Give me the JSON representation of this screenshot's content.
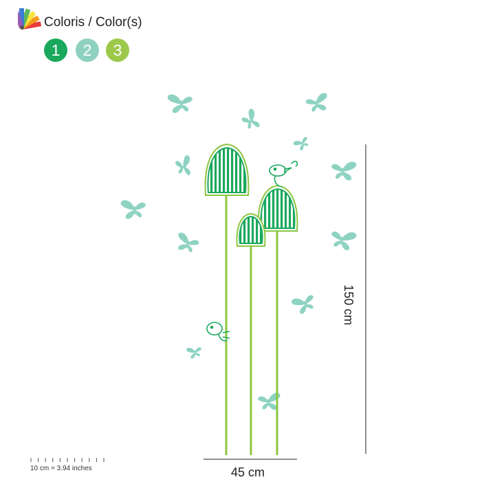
{
  "header": {
    "palette_icon": "color-palette-icon",
    "title": "Coloris / Color(s)"
  },
  "swatches": [
    {
      "label": "1",
      "color": "#1aa85c"
    },
    {
      "label": "2",
      "color": "#8fd1c0"
    },
    {
      "label": "3",
      "color": "#9cc94a"
    }
  ],
  "dimensions": {
    "height_label": "150 cm",
    "width_label": "45 cm"
  },
  "scale": {
    "label": "10 cm = 3.94 inches"
  },
  "colors": {
    "butterfly": "#8ed3c2",
    "pod_dark": "#1aa85c",
    "stem": "#8cc63f",
    "line": "#222222"
  }
}
